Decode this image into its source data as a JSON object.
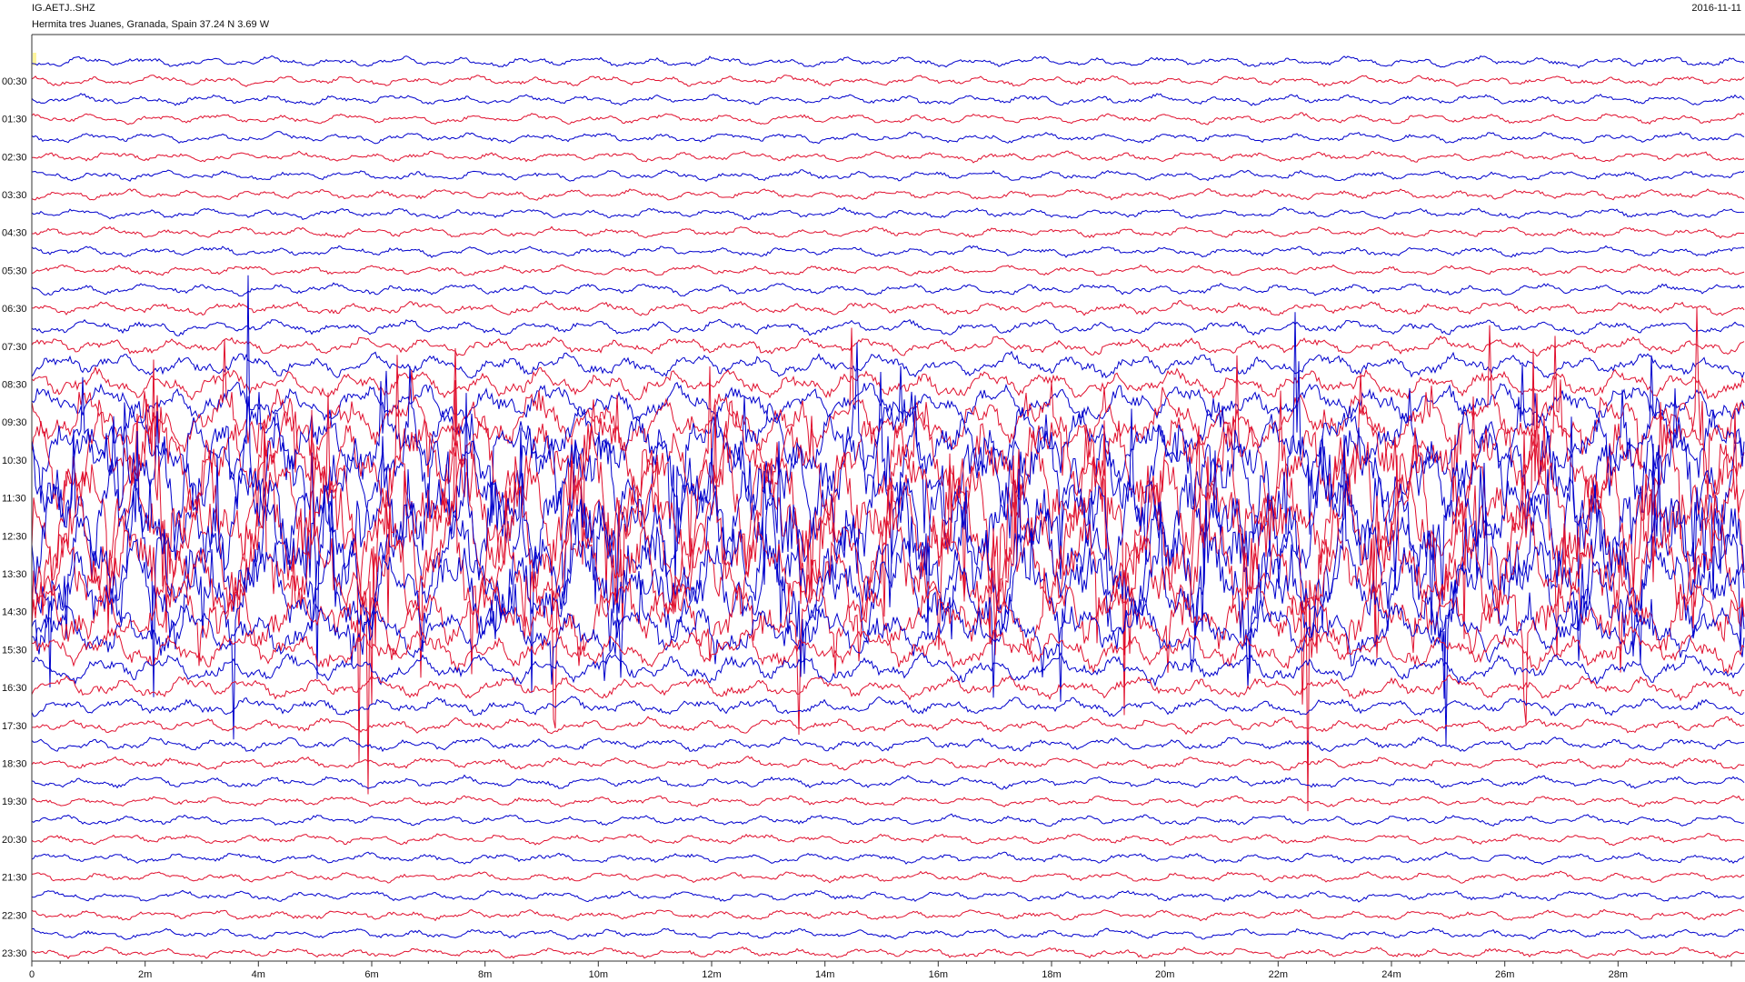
{
  "header": {
    "station": "IG.AETJ..SHZ",
    "location": "Hermita tres Juanes, Granada, Spain  37.24 N 3.69 W",
    "date": "2016-11-11"
  },
  "colors": {
    "trace_a": "#0000cc",
    "trace_b": "#e0102e",
    "axis": "#333333",
    "background": "#ffffff",
    "marker": "#fff59d"
  },
  "chart_data": {
    "type": "helicorder",
    "x_unit": "minutes",
    "x_range": [
      0,
      30
    ],
    "x_ticks": [
      0,
      2,
      4,
      6,
      8,
      10,
      12,
      14,
      16,
      18,
      20,
      22,
      24,
      26,
      28
    ],
    "x_tick_labels": [
      "0",
      "2m",
      "4m",
      "6m",
      "8m",
      "10m",
      "12m",
      "14m",
      "16m",
      "18m",
      "20m",
      "22m",
      "24m",
      "26m",
      "28m"
    ],
    "rows_per_hour": 2,
    "row_count": 48,
    "row_minutes": 30,
    "y_labels": [
      "00:30",
      "01:30",
      "02:30",
      "03:30",
      "04:30",
      "05:30",
      "06:30",
      "07:30",
      "08:30",
      "09:30",
      "10:30",
      "11:30",
      "12:30",
      "13:30",
      "14:30",
      "15:30",
      "16:30",
      "17:30",
      "18:30",
      "19:30",
      "20:30",
      "21:30",
      "22:30",
      "23:30"
    ],
    "row_amplitude_level": [
      0.05,
      0.05,
      0.05,
      0.05,
      0.05,
      0.05,
      0.05,
      0.05,
      0.05,
      0.05,
      0.05,
      0.05,
      0.06,
      0.07,
      0.08,
      0.1,
      0.14,
      0.18,
      0.25,
      0.35,
      0.5,
      0.7,
      0.9,
      1.0,
      1.0,
      1.0,
      0.95,
      0.85,
      0.7,
      0.5,
      0.35,
      0.25,
      0.18,
      0.13,
      0.1,
      0.08,
      0.07,
      0.06,
      0.06,
      0.05,
      0.05,
      0.05,
      0.05,
      0.05,
      0.05,
      0.05,
      0.05,
      0.05
    ],
    "grid": false
  }
}
